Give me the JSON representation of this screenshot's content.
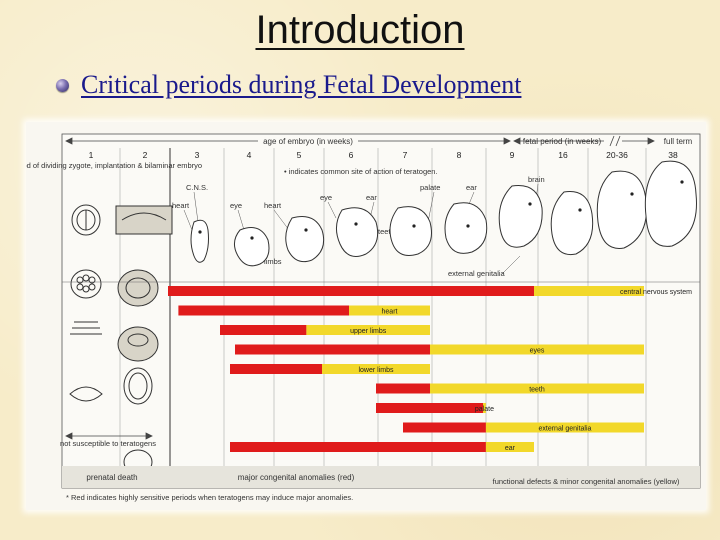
{
  "slide": {
    "title": "Introduction",
    "subtitle": "Critical periods during Fetal Development"
  },
  "figure": {
    "header_embryo": "age of embryo (in weeks)",
    "header_fetal": "fetal period (in weeks)",
    "header_full_term": "full term",
    "weeks": [
      "1",
      "2",
      "3",
      "4",
      "5",
      "6",
      "7",
      "8",
      "9",
      "16",
      "20-36",
      "38"
    ],
    "period_note": "period of dividing zygote, implantation & bilaminar embryo",
    "teratogen_note": "• indicates common site of action of teratogen.",
    "embryo_labels": [
      "C.N.S.",
      "heart",
      "eye",
      "heart",
      "eye",
      "ear",
      "palate",
      "ear",
      "brain",
      "teeth",
      "limbs"
    ],
    "external_genitalia_label": "external genitalia",
    "not_susceptible": "not susceptible to teratogens",
    "prenatal_death": "prenatal death",
    "major_anomalies": "major congenital anomalies (red)",
    "minor_anomalies": "functional defects & minor congenital anomalies (yellow)",
    "footnote": "* Red indicates highly sensitive periods when teratogens may induce major anomalies."
  },
  "chart_data": {
    "type": "bar",
    "categories": [
      "1",
      "2",
      "3",
      "4",
      "5",
      "6",
      "7",
      "8",
      "9",
      "16",
      "20-36",
      "38"
    ],
    "bars": [
      {
        "name": "central nervous system",
        "red": [
          3,
          16
        ],
        "yellow": [
          16,
          38
        ]
      },
      {
        "name": "heart",
        "red": [
          3.2,
          6.5
        ],
        "yellow": [
          6.5,
          8
        ]
      },
      {
        "name": "upper limbs",
        "red": [
          4,
          5.7
        ],
        "yellow": [
          5.7,
          8
        ]
      },
      {
        "name": "eyes",
        "red": [
          4.3,
          8
        ],
        "yellow": [
          8,
          38
        ]
      },
      {
        "name": "lower limbs",
        "red": [
          4.2,
          6
        ],
        "yellow": [
          6,
          8
        ]
      },
      {
        "name": "teeth",
        "red": [
          7,
          8
        ],
        "yellow": [
          8,
          38
        ]
      },
      {
        "name": "palate",
        "red": [
          7,
          9
        ],
        "yellow": [
          9,
          9.4
        ]
      },
      {
        "name": "external genitalia",
        "red": [
          7.5,
          9.4
        ],
        "yellow": [
          9.4,
          38
        ]
      },
      {
        "name": "ear",
        "red": [
          4.2,
          9.4
        ],
        "yellow": [
          9.4,
          16
        ]
      }
    ],
    "colors": {
      "red": "#e01b1b",
      "yellow": "#f2d82a"
    }
  }
}
